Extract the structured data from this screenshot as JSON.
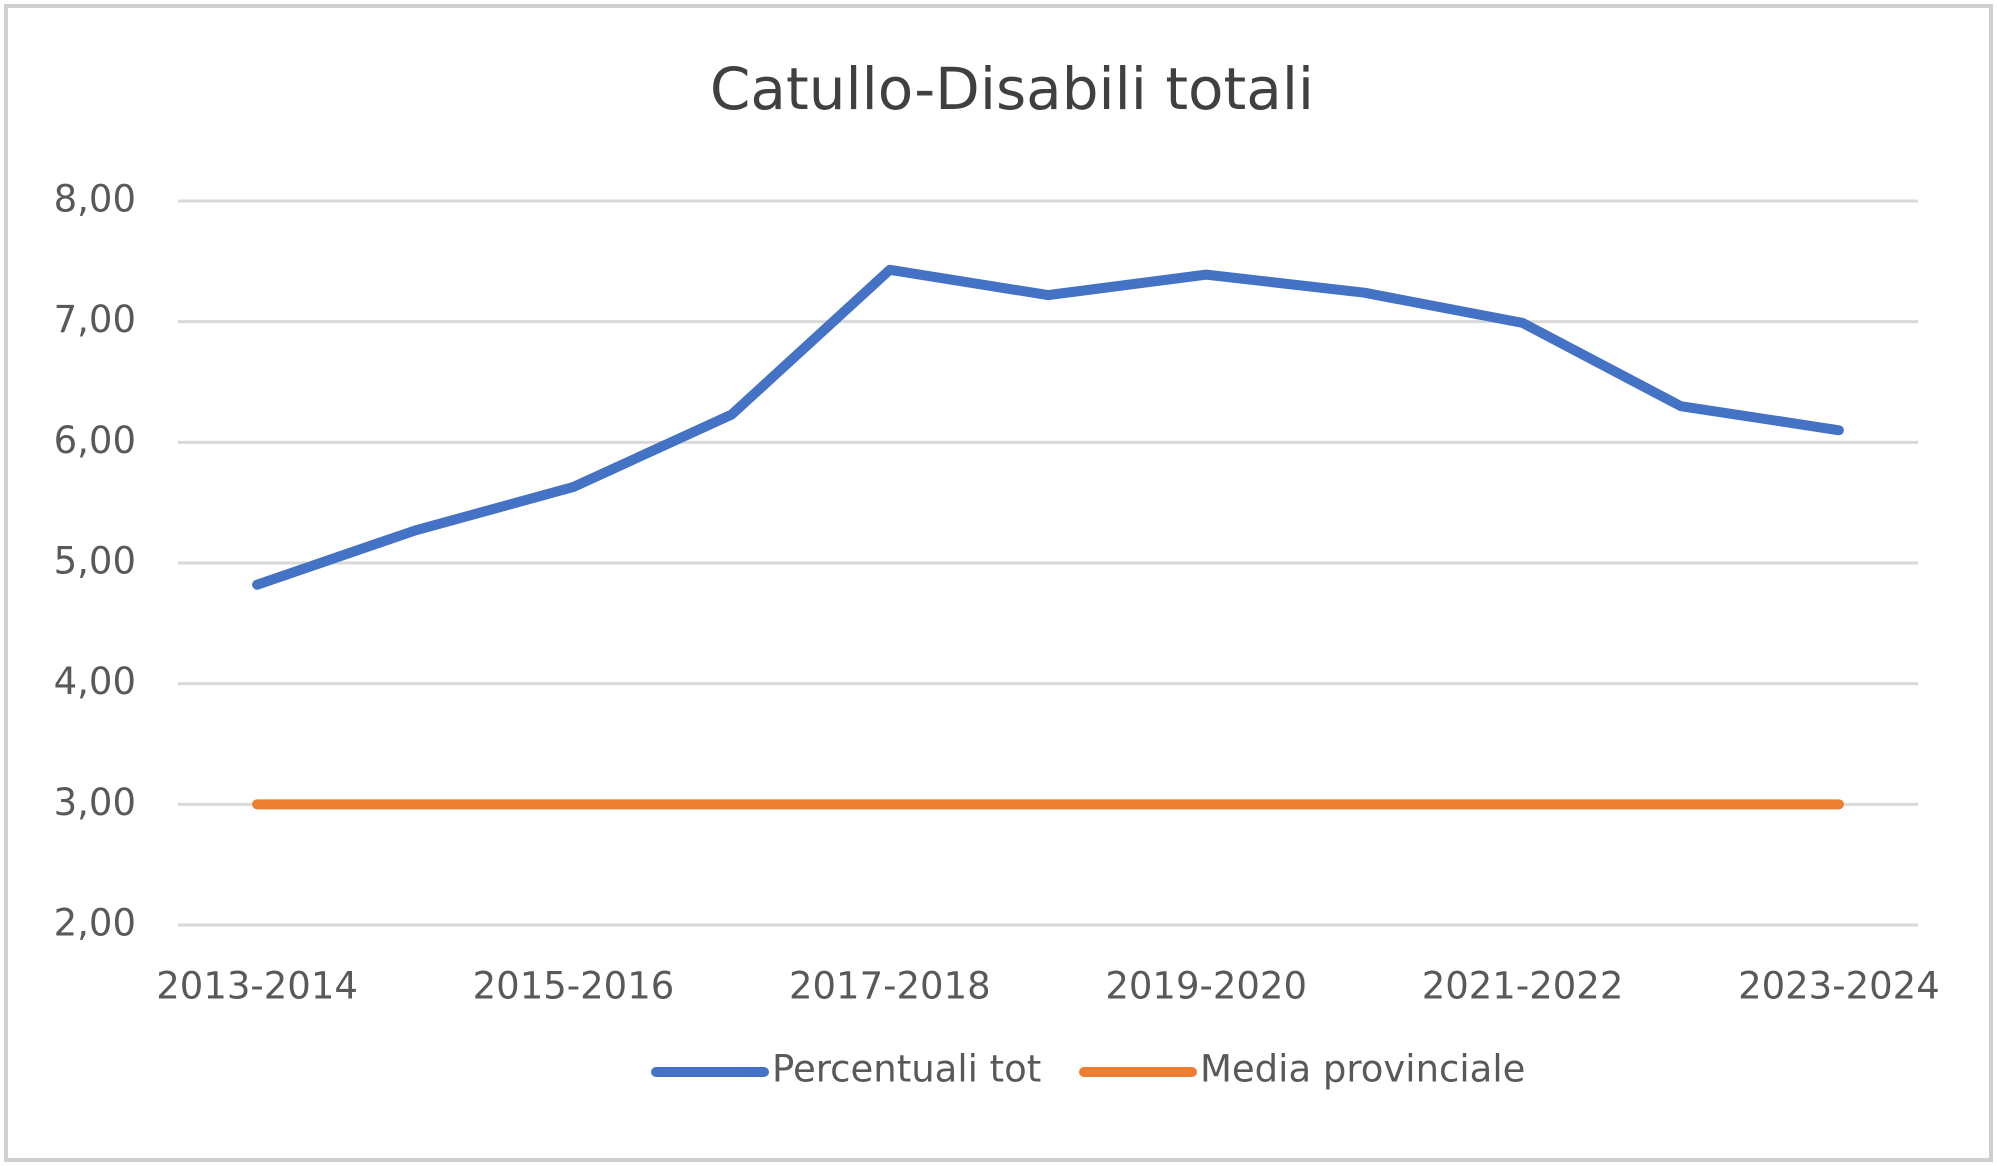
{
  "chart_data": {
    "type": "line",
    "title": "Catullo-Disabili totali",
    "categories": [
      "2013-2014",
      null,
      "2015-2016",
      null,
      "2017-2018",
      null,
      "2019-2020",
      null,
      "2021-2022",
      null,
      "2023-2024"
    ],
    "series": [
      {
        "name": "Percentuali tot",
        "color": "#4472c4",
        "values": [
          4.82,
          5.27,
          5.63,
          6.23,
          7.43,
          7.22,
          7.39,
          7.24,
          6.99,
          6.3,
          6.1
        ]
      },
      {
        "name": "Media provinciale",
        "color": "#ed7d31",
        "values": [
          3,
          3,
          3,
          3,
          3,
          3,
          3,
          3,
          3,
          3,
          3
        ]
      }
    ],
    "ylim": [
      2,
      8
    ],
    "yticks": [
      {
        "value": 2,
        "label": "2,00"
      },
      {
        "value": 3,
        "label": "3,00"
      },
      {
        "value": 4,
        "label": "4,00"
      },
      {
        "value": 5,
        "label": "5,00"
      },
      {
        "value": 6,
        "label": "6,00"
      },
      {
        "value": 7,
        "label": "7,00"
      },
      {
        "value": 8,
        "label": "8,00"
      }
    ],
    "grid": true,
    "legend": "bottom"
  }
}
